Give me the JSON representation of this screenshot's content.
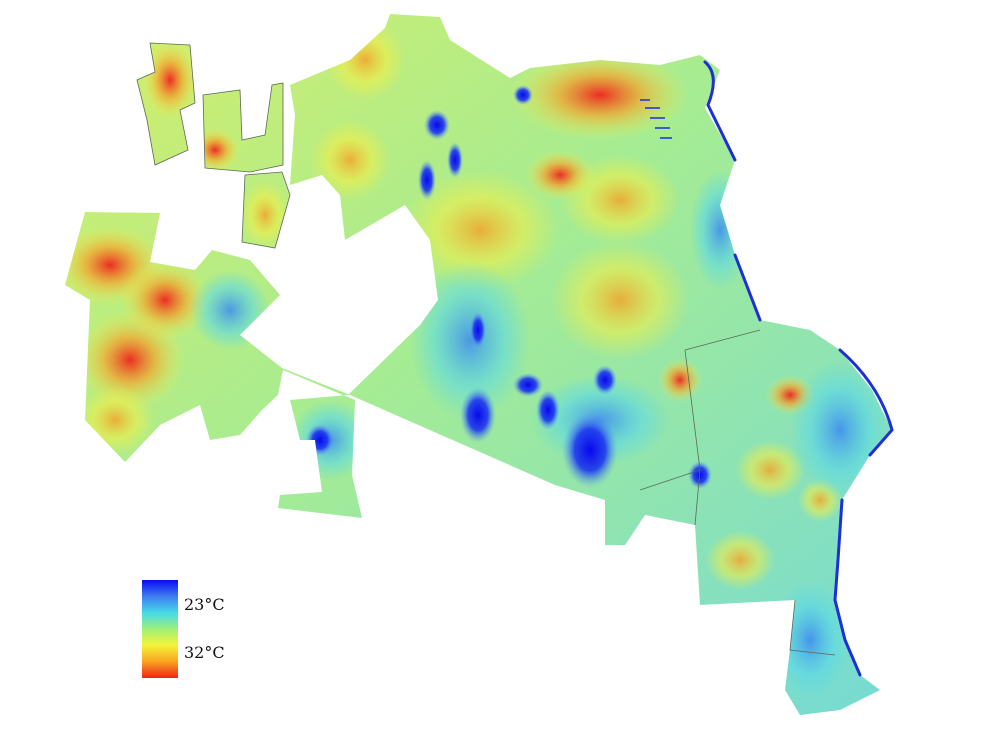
{
  "legend": {
    "low_label": "23°C",
    "high_label": "32°C",
    "color_stops": [
      "#0a0af0",
      "#3f7df2",
      "#44d9e8",
      "#9ff07a",
      "#f4f43a",
      "#f7a31e",
      "#f0221a"
    ]
  },
  "palette": {
    "background": "#ffffff",
    "coast": "#1f2fd8",
    "outline": "#5a6a55",
    "cool_deep": "#0a0af0",
    "cool": "#3f8df2",
    "cyan": "#55d8ea",
    "green": "#a6ef86",
    "yellow": "#f3f24a",
    "orange": "#f6a228",
    "red": "#ef2a1d"
  }
}
